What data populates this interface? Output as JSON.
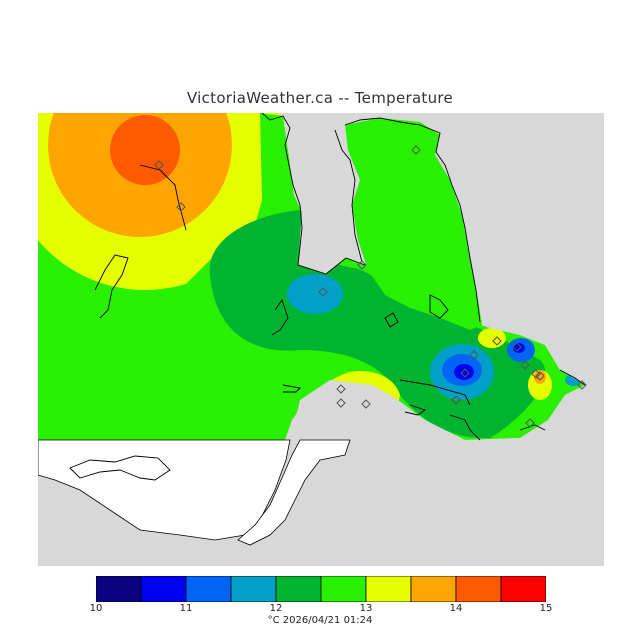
{
  "title": "VictoriaWeather.ca -- Temperature",
  "caption": "°C  2026/04/21 01:24",
  "colors": {
    "water_land_bg": "#d8d8d8",
    "white_land": "#ffffff",
    "coast": "#000000"
  },
  "legend": {
    "ticks": [
      "10",
      "11",
      "12",
      "13",
      "14",
      "15"
    ],
    "bins": [
      {
        "from": 10.0,
        "to": 10.5,
        "color": "#0a0080"
      },
      {
        "from": 10.5,
        "to": 11.0,
        "color": "#0000f0"
      },
      {
        "from": 11.0,
        "to": 11.5,
        "color": "#0064f5"
      },
      {
        "from": 11.5,
        "to": 12.0,
        "color": "#00a0c8"
      },
      {
        "from": 12.0,
        "to": 12.5,
        "color": "#00b432"
      },
      {
        "from": 12.5,
        "to": 13.0,
        "color": "#28f000"
      },
      {
        "from": 13.0,
        "to": 13.5,
        "color": "#e6ff00"
      },
      {
        "from": 13.5,
        "to": 14.0,
        "color": "#ffa500"
      },
      {
        "from": 14.0,
        "to": 14.5,
        "color": "#ff5a00"
      },
      {
        "from": 14.5,
        "to": 15.0,
        "color": "#ff0000"
      }
    ]
  }
}
